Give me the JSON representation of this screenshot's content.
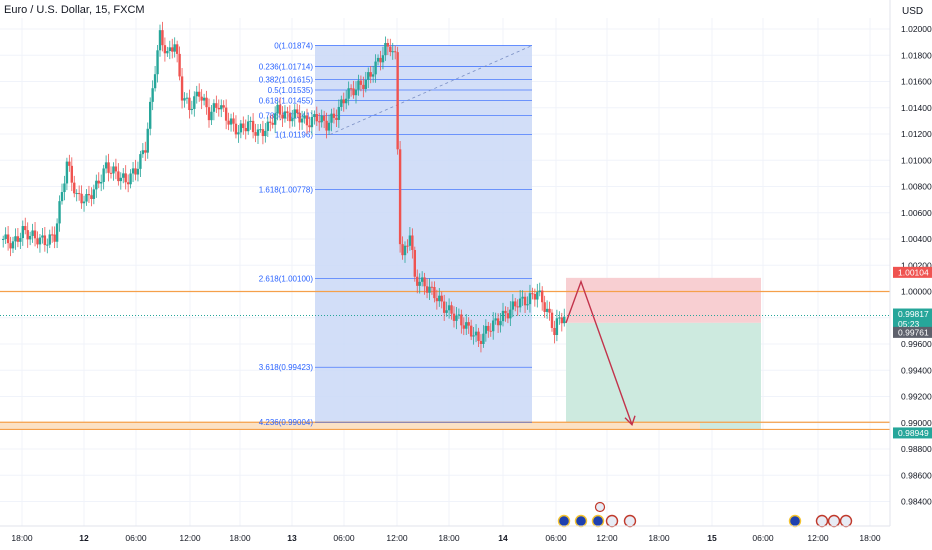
{
  "header": {
    "title": "Euro / U.S. Dollar, 15, FXCM",
    "currency": "USD"
  },
  "colors": {
    "up": "#26a69a",
    "down": "#ef5350",
    "fib_fill": "#cad8f7",
    "fib_line": "#2962ff",
    "stop_fill": "#f8cfd2",
    "target_fill": "#cdeadf",
    "level_orange": "#f5a04a",
    "arrow": "#c2334b"
  },
  "chart_data": {
    "type": "candlestick",
    "price_axis": {
      "ylim": [
        0.983,
        1.0212
      ],
      "ticks": [
        "1.02000",
        "1.01800",
        "1.01600",
        "1.01400",
        "1.01200",
        "1.01000",
        "1.00800",
        "1.00600",
        "1.00400",
        "1.00200",
        "1.00000",
        "0.99800",
        "0.99600",
        "0.99400",
        "0.99200",
        "0.99000",
        "0.98800",
        "0.98600",
        "0.98400"
      ],
      "tick_values": [
        1.02,
        1.018,
        1.016,
        1.014,
        1.012,
        1.01,
        1.008,
        1.006,
        1.004,
        1.002,
        1.0,
        0.998,
        0.996,
        0.994,
        0.992,
        0.99,
        0.988,
        0.986,
        0.984
      ]
    },
    "time_axis": {
      "labels": [
        "18:00",
        "12",
        "06:00",
        "12:00",
        "18:00",
        "13",
        "06:00",
        "12:00",
        "18:00",
        "14",
        "06:00",
        "12:00",
        "18:00",
        "15",
        "06:00",
        "12:00",
        "18:00"
      ],
      "bold": [
        "12",
        "13",
        "14",
        "15"
      ]
    },
    "price_labels": [
      {
        "text": "1.00104",
        "value": 1.00104,
        "color": "#ef5350"
      },
      {
        "text": "0.99817",
        "value": 0.99817,
        "color": "#26a69a"
      },
      {
        "text": "05:23",
        "value": 0.99817,
        "color": "#26a69a",
        "sub": true
      },
      {
        "text": "0.99761",
        "value": 0.99761,
        "color": "#5d606b"
      },
      {
        "text": "0.98949",
        "value": 0.98949,
        "color": "#26a69a"
      }
    ],
    "fib_levels": [
      {
        "label": "0(1.01874)",
        "value": 1.01874
      },
      {
        "label": "0.236(1.01714)",
        "value": 1.01714
      },
      {
        "label": "0.382(1.01615)",
        "value": 1.01615
      },
      {
        "label": "0.5(1.01535)",
        "value": 1.01535
      },
      {
        "label": "0.618(1.01455)",
        "value": 1.01455
      },
      {
        "label": "0.786(1.01341)",
        "value": 1.01341
      },
      {
        "label": "1(1.01196)",
        "value": 1.01196
      },
      {
        "label": "1.618(1.00778)",
        "value": 1.00778
      },
      {
        "label": "2.618(1.00100)",
        "value": 1.001
      },
      {
        "label": "3.618(0.99423)",
        "value": 0.99423
      },
      {
        "label": "4.236(0.99004)",
        "value": 0.99004
      }
    ],
    "horizontal_levels": [
      1.0,
      0.99004,
      0.98949
    ],
    "position": {
      "entry": 0.99761,
      "stop": 1.00104,
      "target": 0.98949
    },
    "candles_keypoints": [
      [
        0,
        1.004
      ],
      [
        4,
        1.0036
      ],
      [
        8,
        1.0046
      ],
      [
        13,
        1.0041
      ],
      [
        17,
        1.0038
      ],
      [
        21,
        1.0042
      ],
      [
        26,
        1.0098
      ],
      [
        30,
        1.0072
      ],
      [
        34,
        1.007
      ],
      [
        38,
        1.008
      ],
      [
        42,
        1.0095
      ],
      [
        46,
        1.009
      ],
      [
        50,
        1.0084
      ],
      [
        54,
        1.0092
      ],
      [
        58,
        1.011
      ],
      [
        62,
        1.017
      ],
      [
        64,
        1.0195
      ],
      [
        67,
        1.018
      ],
      [
        70,
        1.019
      ],
      [
        73,
        1.015
      ],
      [
        76,
        1.014
      ],
      [
        80,
        1.0152
      ],
      [
        84,
        1.0135
      ],
      [
        88,
        1.0143
      ],
      [
        92,
        1.013
      ],
      [
        96,
        1.0122
      ],
      [
        100,
        1.0128
      ],
      [
        104,
        1.012
      ],
      [
        108,
        1.0125
      ],
      [
        112,
        1.0138
      ],
      [
        116,
        1.0133
      ],
      [
        120,
        1.0135
      ],
      [
        124,
        1.0128
      ],
      [
        128,
        1.0133
      ],
      [
        132,
        1.0127
      ],
      [
        136,
        1.0135
      ],
      [
        140,
        1.015
      ],
      [
        144,
        1.0155
      ],
      [
        148,
        1.016
      ],
      [
        152,
        1.0172
      ],
      [
        156,
        1.0185
      ],
      [
        158,
        1.0187
      ],
      [
        160,
        1.0178
      ],
      [
        161,
        1.011
      ],
      [
        162,
        1.004
      ],
      [
        163,
        1.0025
      ],
      [
        166,
        1.0045
      ],
      [
        168,
        1.001
      ],
      [
        172,
        1.0005
      ],
      [
        176,
        0.9998
      ],
      [
        180,
        0.9988
      ],
      [
        184,
        0.9982
      ],
      [
        188,
        0.9975
      ],
      [
        192,
        0.9968
      ],
      [
        194,
        0.9962
      ],
      [
        198,
        0.9972
      ],
      [
        202,
        0.9978
      ],
      [
        206,
        0.9984
      ],
      [
        210,
        0.9992
      ],
      [
        214,
        0.9993
      ],
      [
        218,
        1.0
      ],
      [
        222,
        0.9985
      ],
      [
        225,
        0.997
      ],
      [
        226,
        0.9976
      ],
      [
        229,
        0.9982
      ]
    ]
  },
  "event_icons": [
    "flag-eu-icon",
    "flag-eu-icon",
    "flag-eu-icon",
    "flag-us-icon",
    "flag-us-icon",
    "flag-eu-icon",
    "flag-us-icon",
    "flag-us-icon",
    "flag-us-icon"
  ]
}
